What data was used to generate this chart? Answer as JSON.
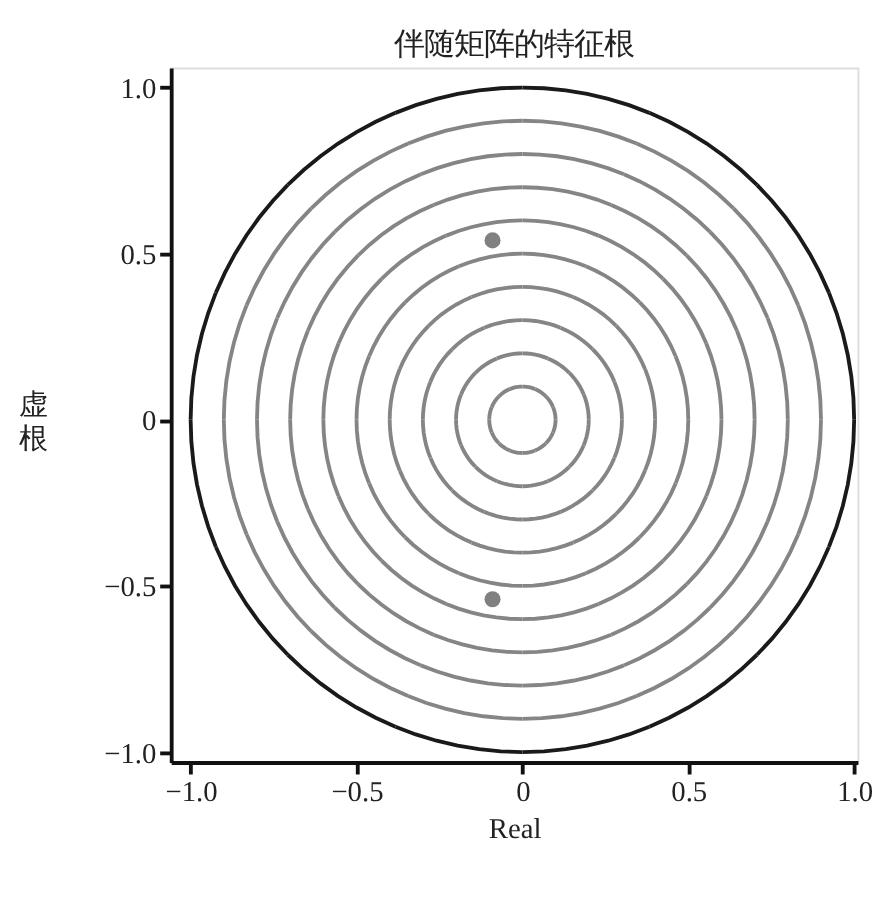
{
  "chart_data": {
    "type": "scatter",
    "title": "伴随矩阵的特征根",
    "xlabel": "Real",
    "ylabel": "虚根",
    "xlim": [
      -1.06,
      1.01
    ],
    "ylim": [
      -1.03,
      1.06
    ],
    "xticks": [
      {
        "value": -1,
        "label": "−1.0"
      },
      {
        "value": -0.5,
        "label": "−0.5"
      },
      0,
      0.5,
      {
        "value": 1,
        "label": "1.0"
      }
    ],
    "yticks": [
      {
        "value": -1,
        "label": "−1.0"
      },
      {
        "value": -0.5,
        "label": "−0.5"
      },
      0,
      0.5,
      {
        "value": 1,
        "label": "1.0"
      }
    ],
    "grid": false,
    "marker": "circle",
    "series": [
      {
        "color": "#808080",
        "x": [
          -0.09,
          -0.09
        ],
        "values": [
          0.54,
          -0.54
        ]
      }
    ]
  }
}
